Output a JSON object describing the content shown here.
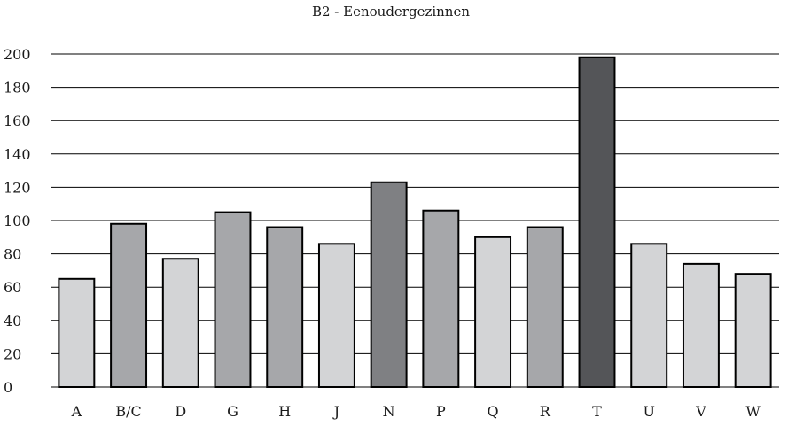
{
  "chart_data": {
    "type": "bar",
    "title": "B2 - Eenoudergezinnen",
    "xlabel": "",
    "ylabel": "",
    "categories": [
      "A",
      "B/C",
      "D",
      "G",
      "H",
      "J",
      "N",
      "P",
      "Q",
      "R",
      "T",
      "U",
      "V",
      "W"
    ],
    "values": [
      65,
      98,
      77,
      105,
      96,
      86,
      123,
      106,
      90,
      96,
      198,
      86,
      74,
      68
    ],
    "bar_colors": [
      "#d3d4d6",
      "#a6a7aa",
      "#d3d4d6",
      "#a6a7aa",
      "#a6a7aa",
      "#d3d4d6",
      "#7f8083",
      "#a6a7aa",
      "#d3d4d6",
      "#a6a7aa",
      "#545558",
      "#d3d4d6",
      "#d3d4d6",
      "#d3d4d6"
    ],
    "ylim": [
      0,
      200
    ],
    "yticks": [
      0,
      20,
      40,
      60,
      80,
      100,
      120,
      140,
      160,
      180,
      200
    ],
    "grid": true,
    "legend": "none"
  }
}
